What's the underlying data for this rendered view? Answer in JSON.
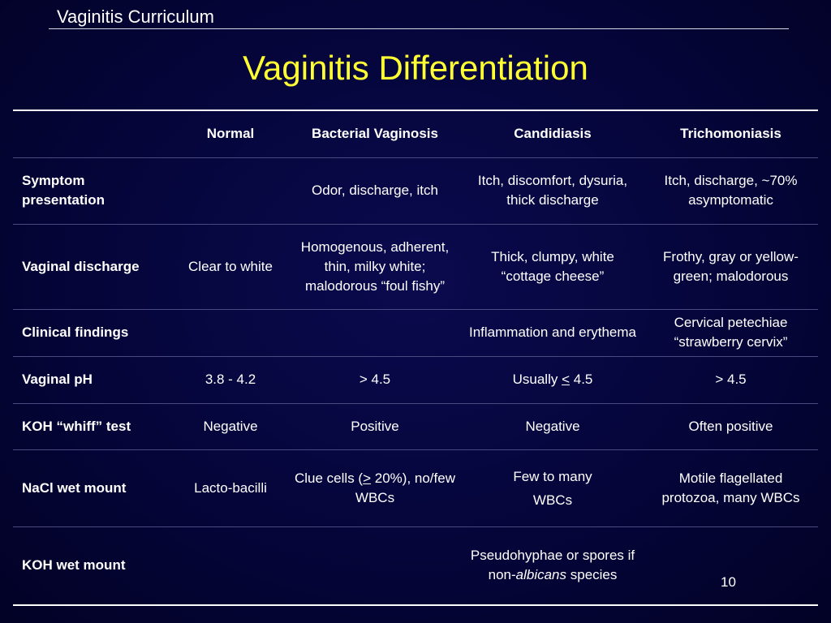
{
  "header": {
    "text": "Vaginitis Curriculum"
  },
  "title": "Vaginitis Differentiation",
  "table": {
    "columns": [
      "",
      "Normal",
      "Bacterial Vaginosis",
      "Candidiasis",
      "Trichomoniasis"
    ],
    "rows": [
      {
        "label": "Symptom presentation",
        "normal": "",
        "bv": "Odor, discharge, itch",
        "candida": "Itch, discomfort, dysuria, thick discharge",
        "trich": "Itch, discharge, ~70% asymptomatic"
      },
      {
        "label": "Vaginal discharge",
        "normal": "Clear to white",
        "bv": "Homogenous, adherent, thin, milky white; malodorous “foul fishy”",
        "candida": "Thick, clumpy, white “cottage cheese”",
        "trich": "Frothy, gray or yellow-green; malodorous"
      },
      {
        "label": "Clinical findings",
        "normal": "",
        "bv": "",
        "candida": "Inflammation and erythema",
        "trich": "Cervical petechiae “strawberry cervix”"
      },
      {
        "label": "Vaginal pH",
        "normal": "3.8 - 4.2",
        "bv": "> 4.5",
        "candida_prefix": "Usually ",
        "candida_symbol": "<",
        "candida_suffix": " 4.5",
        "trich": "> 4.5"
      },
      {
        "label_prefix": "KOH ",
        "label_quote": "“whiff”",
        "label_suffix": " test",
        "normal": "Negative",
        "bv": "Positive",
        "candida": "Negative",
        "trich": "Often positive"
      },
      {
        "label": "NaCl wet mount",
        "normal": "Lacto-bacilli",
        "bv_prefix": "Clue cells (",
        "bv_symbol": ">",
        "bv_suffix": " 20%), no/few WBCs",
        "candida_line1": "Few to many",
        "candida_line2": "WBCs",
        "trich": "Motile flagellated protozoa, many WBCs"
      },
      {
        "label": "KOH wet mount",
        "normal": "",
        "bv": "",
        "candida_prefix": "Pseudohyphae or spores if non-",
        "candida_italic": "albicans",
        "candida_suffix": " species",
        "trich": ""
      }
    ]
  },
  "page_number": "10"
}
